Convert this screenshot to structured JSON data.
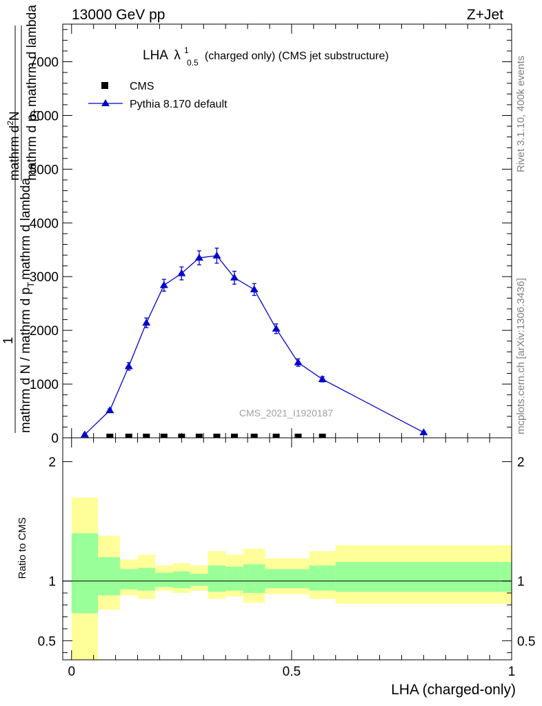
{
  "header": {
    "left": "13000 GeV pp",
    "right": "Z+Jet"
  },
  "side_labels": {
    "rivet": "Rivet 3.1.10,  400k events",
    "mcplots": "mcplots.cern.ch [arXiv:1306.3436]"
  },
  "watermark": "CMS_2021_I1920187",
  "colors": {
    "mc": "#0000cc",
    "data": "#000000",
    "band_outer": "#ffff99",
    "band_inner": "#99ff99"
  },
  "chart_data": [
    {
      "type": "line",
      "title": {
        "main": "LHA",
        "lambda": "λ",
        "sup": "1",
        "sub": "0.5",
        "rest": "(charged only) (CMS jet substructure)"
      },
      "ylabel": {
        "num": "1",
        "den": "mathrm d N / mathrm d p_T mathrm d lambda",
        "num2": "mathrm d²N",
        "den2": "mathrm d p_T mathrm d lambda",
        "line1": "mathrm d",
        "sub_num": "N"
      },
      "ylabel_lines": {
        "num": "1",
        "den_a": "mathrm d N / mathrm d p",
        "den_b": "T",
        "den_c": "mathrm d lambda",
        "frac_num_a": "mathrm d",
        "frac_num_b": "2",
        "frac_num_c": "N",
        "frac_den_a": "mathrm d p",
        "frac_den_b": "T",
        "frac_den_c": "mathrm d lambda"
      },
      "ylim": [
        0,
        7700
      ],
      "yticks": [
        {
          "v": 0,
          "label": "0"
        },
        {
          "v": 1000,
          "label": "1000"
        },
        {
          "v": 2000,
          "label": "2000"
        },
        {
          "v": 3000,
          "label": "3000"
        },
        {
          "v": 4000,
          "label": "4000"
        },
        {
          "v": 5000,
          "label": "5000"
        },
        {
          "v": 6000,
          "label": "6000"
        },
        {
          "v": 7000,
          "label": "7000"
        }
      ],
      "xlim": [
        -0.02,
        1.0
      ],
      "legend": {
        "position": "top-left",
        "entries": [
          {
            "name": "CMS",
            "marker": "square"
          },
          {
            "name": "Pythia 8.170 default",
            "marker": "triangle"
          }
        ]
      },
      "series": [
        {
          "name": "Pythia 8.170 default",
          "x": [
            0.03,
            0.087,
            0.13,
            0.17,
            0.21,
            0.25,
            0.29,
            0.33,
            0.37,
            0.415,
            0.465,
            0.515,
            0.57,
            0.8
          ],
          "y": [
            60,
            510,
            1330,
            2140,
            2840,
            3060,
            3350,
            3390,
            2980,
            2760,
            2030,
            1400,
            1090,
            100
          ],
          "err": [
            20,
            30,
            70,
            90,
            110,
            120,
            130,
            140,
            120,
            110,
            90,
            70,
            50,
            20
          ]
        },
        {
          "name": "CMS",
          "x": [
            0.087,
            0.13,
            0.17,
            0.21,
            0.25,
            0.29,
            0.33,
            0.37,
            0.415,
            0.465,
            0.515,
            0.57
          ],
          "y": [
            0,
            0,
            0,
            0,
            0,
            0,
            0,
            0,
            0,
            0,
            0,
            0
          ]
        }
      ]
    },
    {
      "type": "area",
      "ylabel": "Ratio to CMS",
      "xlabel": "LHA (charged-only)",
      "ylim": [
        0.34,
        2.2
      ],
      "yticks": [
        {
          "v": 0.5,
          "label": "0.5"
        },
        {
          "v": 1,
          "label": "1"
        },
        {
          "v": 2,
          "label": "2"
        }
      ],
      "xlim": [
        -0.02,
        1.0
      ],
      "xticks": [
        {
          "v": 0,
          "label": "0"
        },
        {
          "v": 0.5,
          "label": "0.5"
        },
        {
          "v": 1,
          "label": "1"
        }
      ],
      "reference": 1,
      "bands": [
        {
          "x0": 0.0,
          "x1": 0.06,
          "outer": [
            0.34,
            1.7
          ],
          "inner": [
            0.73,
            1.4
          ]
        },
        {
          "x0": 0.06,
          "x1": 0.11,
          "outer": [
            0.76,
            1.38
          ],
          "inner": [
            0.88,
            1.2
          ]
        },
        {
          "x0": 0.11,
          "x1": 0.15,
          "outer": [
            0.88,
            1.18
          ],
          "inner": [
            0.93,
            1.1
          ]
        },
        {
          "x0": 0.15,
          "x1": 0.19,
          "outer": [
            0.85,
            1.22
          ],
          "inner": [
            0.92,
            1.11
          ]
        },
        {
          "x0": 0.19,
          "x1": 0.23,
          "outer": [
            0.92,
            1.13
          ],
          "inner": [
            0.95,
            1.07
          ]
        },
        {
          "x0": 0.23,
          "x1": 0.27,
          "outer": [
            0.9,
            1.15
          ],
          "inner": [
            0.94,
            1.08
          ]
        },
        {
          "x0": 0.27,
          "x1": 0.31,
          "outer": [
            0.92,
            1.13
          ],
          "inner": [
            0.96,
            1.06
          ]
        },
        {
          "x0": 0.31,
          "x1": 0.35,
          "outer": [
            0.85,
            1.25
          ],
          "inner": [
            0.91,
            1.13
          ]
        },
        {
          "x0": 0.35,
          "x1": 0.39,
          "outer": [
            0.87,
            1.22
          ],
          "inner": [
            0.92,
            1.12
          ]
        },
        {
          "x0": 0.39,
          "x1": 0.44,
          "outer": [
            0.82,
            1.27
          ],
          "inner": [
            0.9,
            1.14
          ]
        },
        {
          "x0": 0.44,
          "x1": 0.49,
          "outer": [
            0.89,
            1.19
          ],
          "inner": [
            0.94,
            1.1
          ]
        },
        {
          "x0": 0.49,
          "x1": 0.54,
          "outer": [
            0.89,
            1.19
          ],
          "inner": [
            0.94,
            1.1
          ]
        },
        {
          "x0": 0.54,
          "x1": 0.6,
          "outer": [
            0.85,
            1.25
          ],
          "inner": [
            0.92,
            1.13
          ]
        },
        {
          "x0": 0.6,
          "x1": 1.0,
          "outer": [
            0.81,
            1.3
          ],
          "inner": [
            0.91,
            1.16
          ]
        }
      ]
    }
  ]
}
